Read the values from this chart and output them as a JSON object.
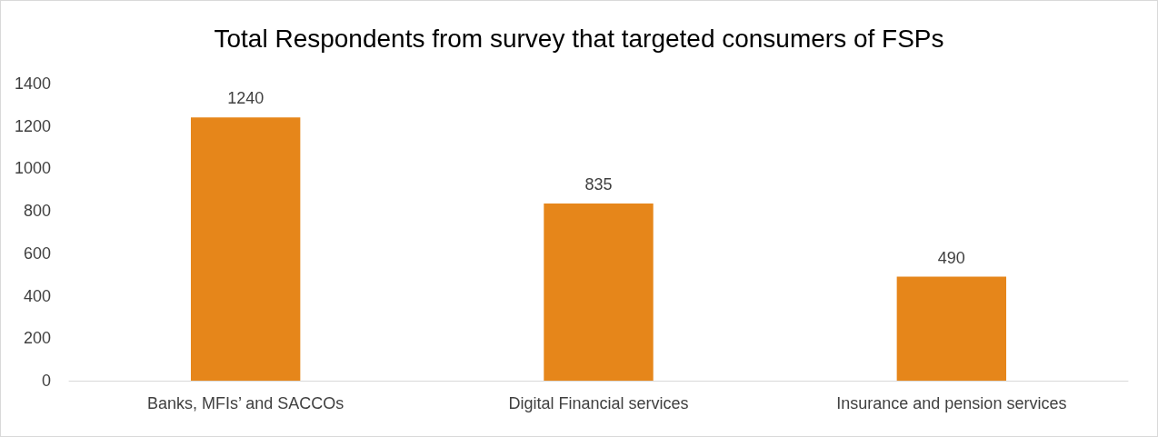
{
  "chart_data": {
    "type": "bar",
    "title": "Total Respondents from survey that targeted consumers of FSPs",
    "categories": [
      "Banks, MFIs’ and SACCOs",
      "Digital Financial services",
      "Insurance and pension services"
    ],
    "values": [
      1240,
      835,
      490
    ],
    "color": "#e6861a",
    "ylim": [
      0,
      1400
    ],
    "yticks": [
      0,
      200,
      400,
      600,
      800,
      1000,
      1200,
      1400
    ],
    "grid": false,
    "data_labels": true
  }
}
